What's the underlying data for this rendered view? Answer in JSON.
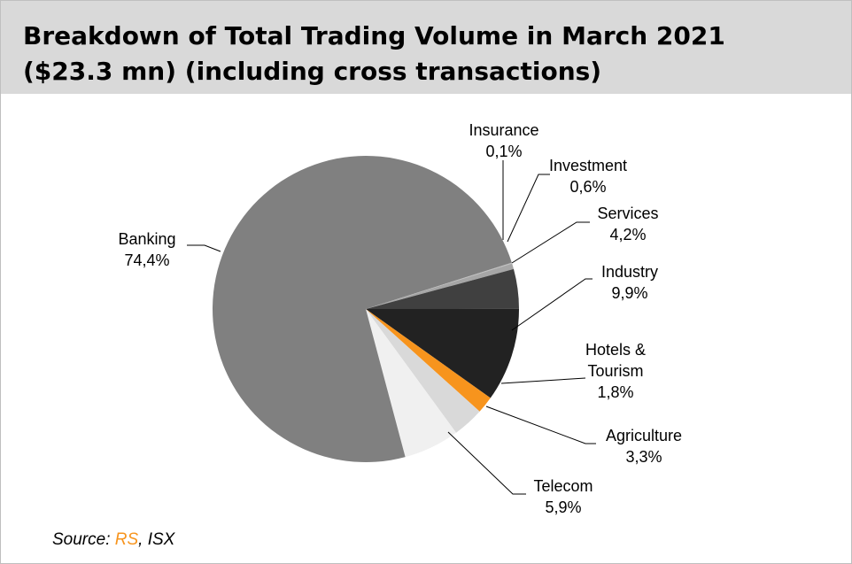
{
  "chart_data": {
    "type": "pie",
    "title": "Breakdown of Total Trading Volume in March 2021 ($23.3 mn) (including cross transactions)",
    "categories": [
      "Insurance",
      "Investment",
      "Services",
      "Industry",
      "Hotels & Tourism",
      "Agriculture",
      "Telecom",
      "Banking"
    ],
    "values": [
      0.1,
      0.6,
      4.2,
      9.9,
      1.8,
      3.3,
      5.9,
      74.4
    ],
    "value_labels": [
      "0,1%",
      "0,6%",
      "4,2%",
      "9,9%",
      "1,8%",
      "3,3%",
      "5,9%",
      "74,4%"
    ],
    "colors": [
      "#bfbfbf",
      "#a6a6a6",
      "#404040",
      "#222222",
      "#f7941d",
      "#d9d9d9",
      "#f0f0f0",
      "#808080"
    ],
    "source": {
      "prefix": "Source: ",
      "link": "RS",
      "suffix": ", ISX"
    }
  }
}
